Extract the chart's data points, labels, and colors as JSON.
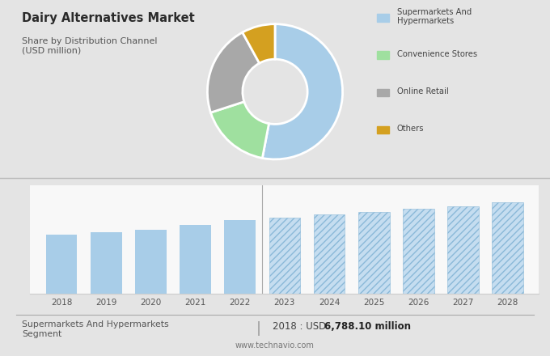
{
  "title": "Dairy Alternatives Market",
  "subtitle": "Share by Distribution Channel\n(USD million)",
  "bg_color": "#e4e4e4",
  "bar_panel_bg": "#f5f5f5",
  "top_panel_bg": "#e4e4e4",
  "pie_slices": [
    53,
    17,
    22,
    8
  ],
  "pie_colors": [
    "#a8cde8",
    "#9fe09f",
    "#a8a8a8",
    "#d4a020"
  ],
  "pie_labels": [
    "Supermarkets And\nHypermarkets",
    "Convenience Stores",
    "Online Retail",
    "Others"
  ],
  "bar_years_solid": [
    2018,
    2019,
    2020,
    2021,
    2022
  ],
  "bar_values_solid": [
    6788,
    7100,
    7350,
    7900,
    8500
  ],
  "bar_years_hatched": [
    2023,
    2024,
    2025,
    2026,
    2027,
    2028
  ],
  "bar_values_hatched": [
    8800,
    9100,
    9400,
    9750,
    10100,
    10500
  ],
  "bar_color_solid": "#a8cde8",
  "bar_color_hatched": "#c5ddf0",
  "hatch_pattern": "////",
  "footer_left": "Supermarkets And Hypermarkets\nSegment",
  "footer_right_prefix": "2018 : USD ",
  "footer_right_bold": "6,788.10 million",
  "footer_website": "www.technavio.com"
}
